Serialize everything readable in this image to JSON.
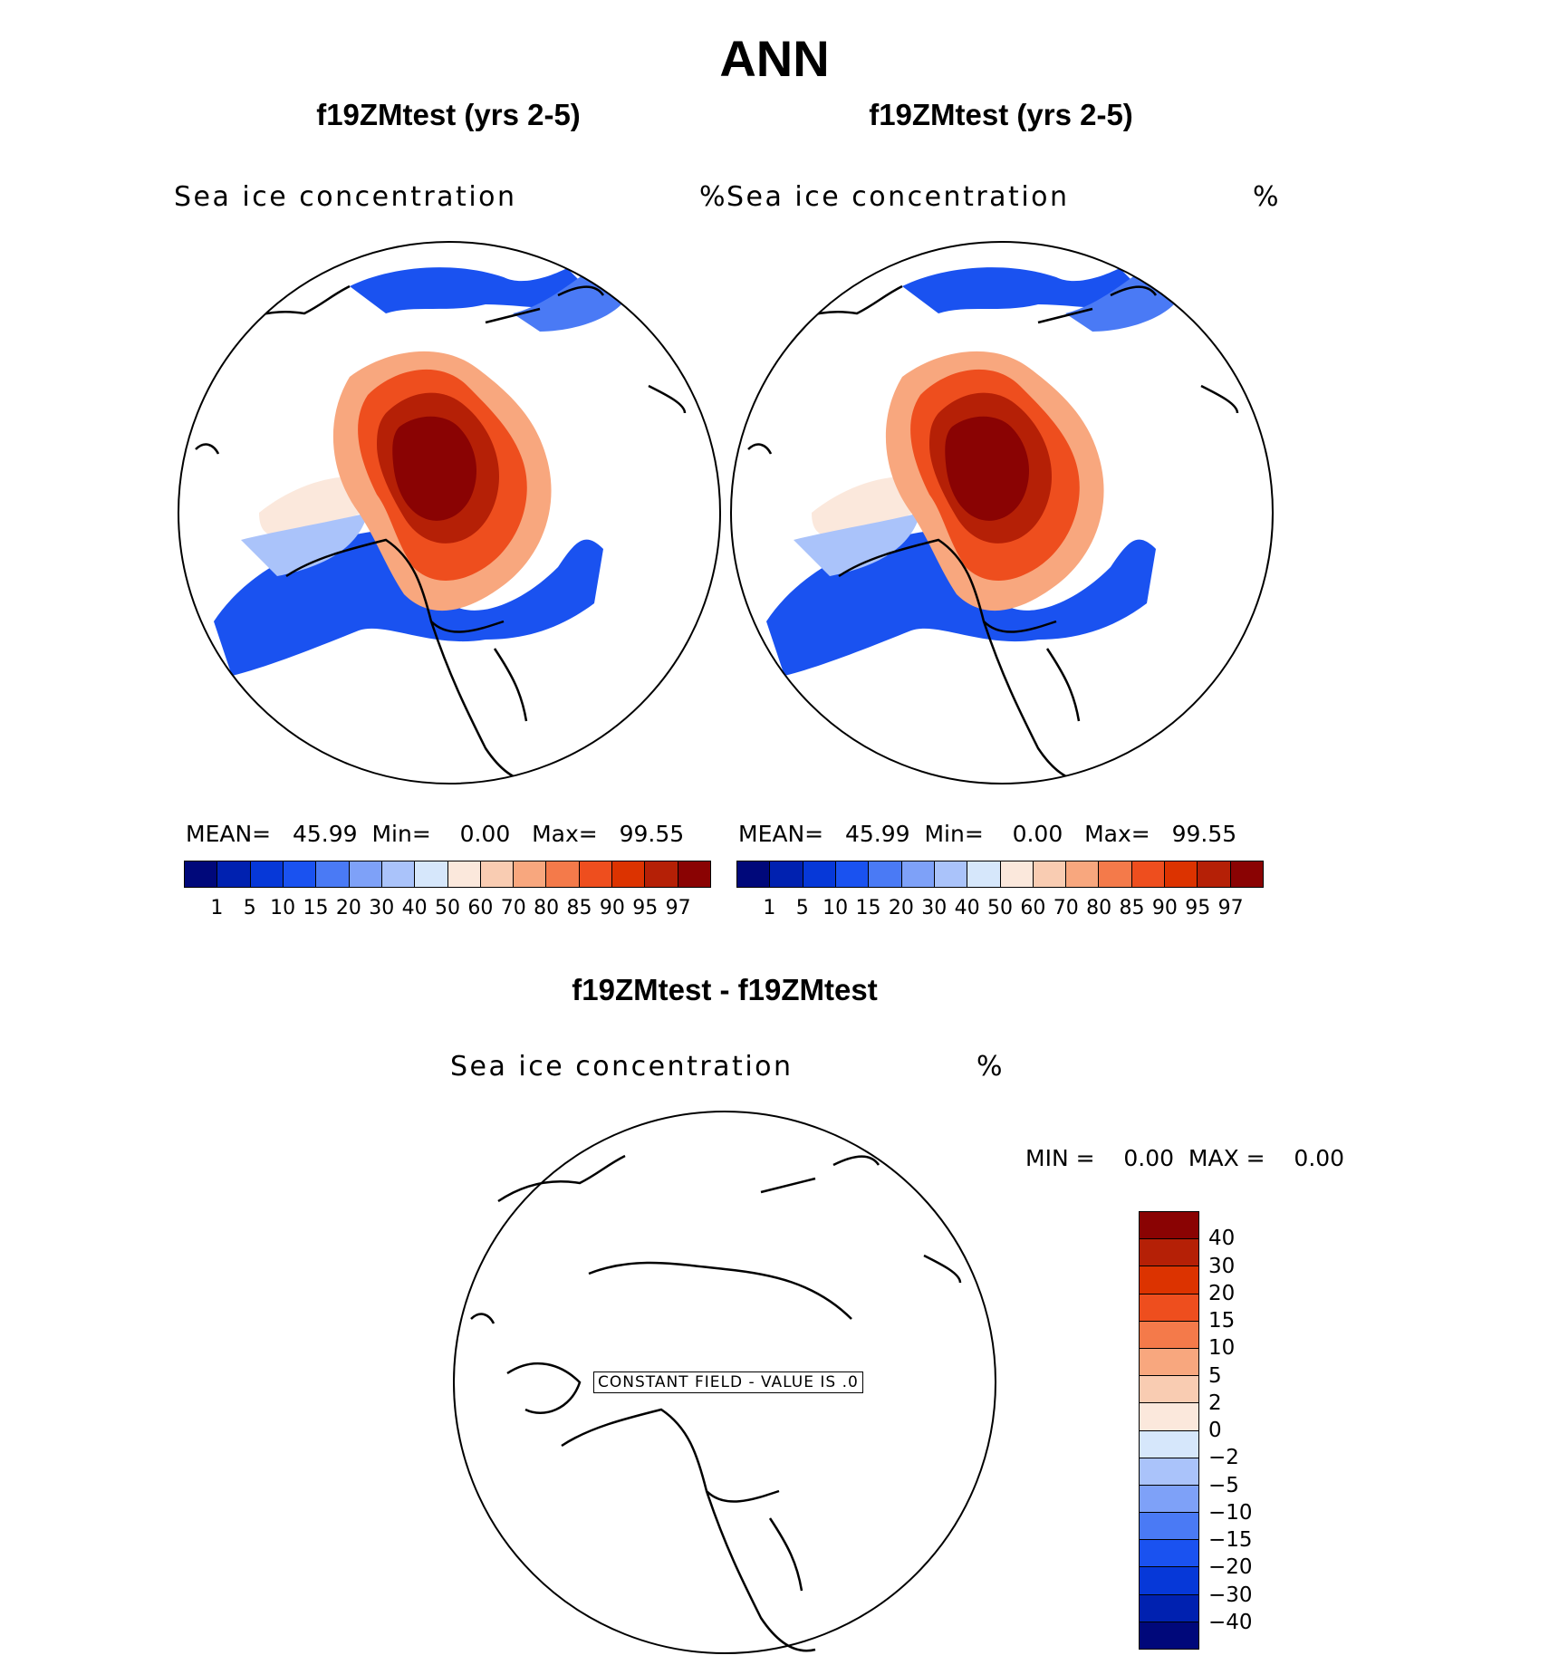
{
  "title": "ANN",
  "panels": [
    {
      "title": "f19ZMtest (yrs 2-5)",
      "variable": "Sea ice concentration",
      "unit": "%",
      "stats": {
        "mean_label": "MEAN=",
        "mean": "45.99",
        "min_label": "Min=",
        "min": "0.00",
        "max_label": "Max=",
        "max": "99.55"
      }
    },
    {
      "title": "f19ZMtest (yrs 2-5)",
      "variable": "Sea ice concentration",
      "unit": "%",
      "stats": {
        "mean_label": "MEAN=",
        "mean": "45.99",
        "min_label": "Min=",
        "min": "0.00",
        "max_label": "Max=",
        "max": "99.55"
      }
    }
  ],
  "abs_colorbar": {
    "labels": [
      "1",
      "5",
      "10",
      "15",
      "20",
      "30",
      "40",
      "50",
      "60",
      "70",
      "80",
      "85",
      "90",
      "95",
      "97"
    ],
    "colors": [
      "#00087a",
      "#0021b0",
      "#0638d8",
      "#1a52f0",
      "#4a7af5",
      "#7ea1f8",
      "#aac3fa",
      "#d6e7fb",
      "#fbe8dc",
      "#f9ccb2",
      "#f8a77e",
      "#f47a4a",
      "#ee4e1e",
      "#dc3300",
      "#b52006",
      "#8a0303"
    ]
  },
  "diff_panel": {
    "title": "f19ZMtest - f19ZMtest",
    "variable": "Sea ice concentration",
    "unit": "%",
    "min_label": "MIN =",
    "min": "0.00",
    "max_label": "MAX =",
    "max": "0.00",
    "constant_note": "CONSTANT FIELD - VALUE IS .0"
  },
  "diff_colorbar": {
    "labels": [
      "40",
      "30",
      "20",
      "15",
      "10",
      "5",
      "2",
      "0",
      "−2",
      "−5",
      "−10",
      "−15",
      "−20",
      "−30",
      "−40"
    ],
    "colors": [
      "#8a0303",
      "#b52006",
      "#dc3300",
      "#ee4e1e",
      "#f47a4a",
      "#f8a77e",
      "#f9ccb2",
      "#fbe8dc",
      "#d6e7fb",
      "#aac3fa",
      "#7ea1f8",
      "#4a7af5",
      "#1a52f0",
      "#0638d8",
      "#0021b0",
      "#00087a"
    ]
  }
}
